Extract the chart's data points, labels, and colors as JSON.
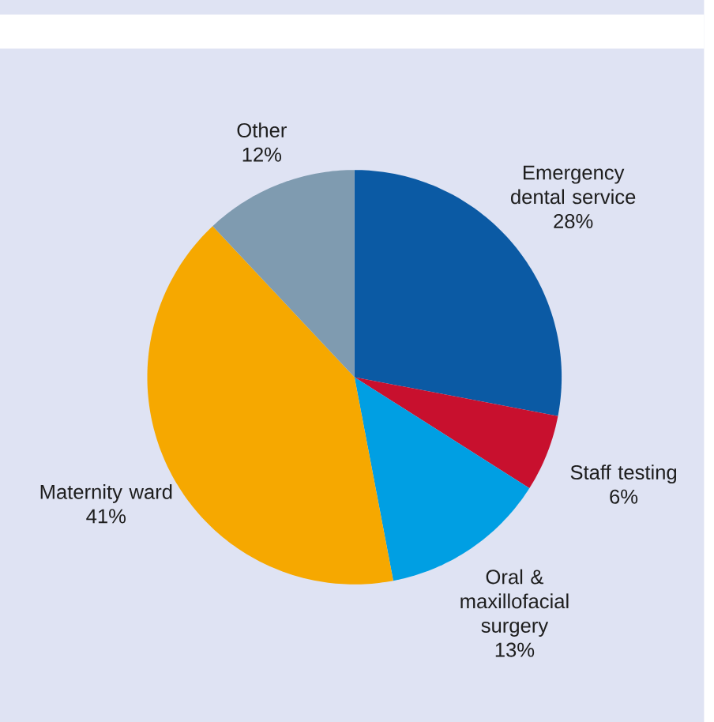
{
  "chart_data": {
    "type": "pie",
    "categories": [
      "Emergency dental service",
      "Staff testing",
      "Oral & maxillofacial surgery",
      "Maternity ward",
      "Other"
    ],
    "values": [
      28,
      6,
      13,
      41,
      12
    ],
    "value_labels": [
      "28%",
      "6%",
      "13%",
      "41%",
      "12%"
    ],
    "colors": [
      "#0b5aa4",
      "#c8102e",
      "#009fe3",
      "#f6a800",
      "#7f9bb0"
    ]
  }
}
